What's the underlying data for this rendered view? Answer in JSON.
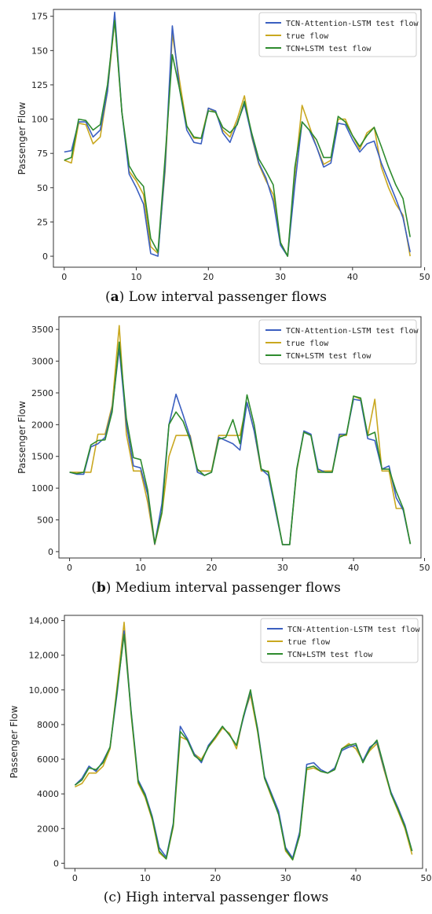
{
  "series_names": [
    "TCN-Attention-LSTM test flow",
    "true flow",
    "TCN+LSTM test flow"
  ],
  "series_colors": [
    "#3b5fc0",
    "#c9a820",
    "#2e8b2e"
  ],
  "chart_data": [
    {
      "type": "line",
      "caption_letter": "a",
      "caption_text": " Low interval passenger flows",
      "ylabel": "Passenger Flow",
      "xlabel": "",
      "xlim": [
        -1.5,
        49.5
      ],
      "ylim": [
        -8,
        180
      ],
      "xticks": [
        0,
        10,
        20,
        30,
        40,
        50
      ],
      "yticks": [
        0,
        25,
        50,
        75,
        100,
        125,
        150,
        175
      ],
      "ytick_labels": [
        "0",
        "25",
        "50",
        "75",
        "100",
        "125",
        "150",
        "175"
      ],
      "grid": false,
      "legend": "top-right",
      "x": [
        0,
        1,
        2,
        3,
        4,
        5,
        6,
        7,
        8,
        9,
        10,
        11,
        12,
        13,
        14,
        15,
        16,
        17,
        18,
        19,
        20,
        21,
        22,
        23,
        24,
        25,
        26,
        27,
        28,
        29,
        30,
        31,
        32,
        33,
        34,
        35,
        36,
        37,
        38,
        39,
        40,
        41,
        42,
        43,
        44,
        45,
        46,
        47,
        48
      ],
      "series": [
        {
          "name": "TCN-Attention-LSTM test flow",
          "values": [
            76,
            77,
            98,
            98,
            87,
            92,
            120,
            178,
            105,
            60,
            50,
            38,
            2,
            0,
            65,
            168,
            122,
            92,
            83,
            82,
            108,
            106,
            90,
            83,
            97,
            111,
            88,
            68,
            57,
            40,
            8,
            0,
            52,
            98,
            92,
            80,
            65,
            68,
            97,
            96,
            85,
            76,
            82,
            84,
            68,
            55,
            42,
            28,
            3
          ]
        },
        {
          "name": "true flow",
          "values": [
            70,
            68,
            97,
            96,
            82,
            87,
            120,
            172,
            105,
            62,
            55,
            45,
            7,
            2,
            62,
            162,
            128,
            95,
            86,
            86,
            108,
            105,
            92,
            87,
            100,
            117,
            87,
            67,
            55,
            45,
            10,
            0,
            60,
            110,
            95,
            80,
            67,
            70,
            100,
            100,
            88,
            78,
            90,
            94,
            65,
            50,
            38,
            30,
            0
          ]
        },
        {
          "name": "TCN+LSTM test flow",
          "values": [
            70,
            72,
            100,
            99,
            92,
            96,
            125,
            172,
            105,
            66,
            57,
            51,
            13,
            3,
            72,
            147,
            122,
            95,
            87,
            86,
            106,
            105,
            94,
            90,
            96,
            113,
            90,
            71,
            62,
            52,
            10,
            0,
            65,
            98,
            92,
            85,
            72,
            72,
            102,
            98,
            88,
            80,
            88,
            94,
            80,
            65,
            52,
            42,
            14
          ]
        }
      ]
    },
    {
      "type": "line",
      "caption_letter": "b",
      "caption_text": " Medium interval passenger flows",
      "ylabel": "Passenger Flow",
      "xlabel": "",
      "xlim": [
        -1.5,
        49.5
      ],
      "ylim": [
        -100,
        3700
      ],
      "xticks": [
        0,
        10,
        20,
        30,
        40,
        50
      ],
      "yticks": [
        0,
        500,
        1000,
        1500,
        2000,
        2500,
        3000,
        3500
      ],
      "ytick_labels": [
        "0",
        "500",
        "1000",
        "1500",
        "2000",
        "2500",
        "3000",
        "3500"
      ],
      "grid": false,
      "legend": "top-right",
      "x": [
        0,
        1,
        2,
        3,
        4,
        5,
        6,
        7,
        8,
        9,
        10,
        11,
        12,
        13,
        14,
        15,
        16,
        17,
        18,
        19,
        20,
        21,
        22,
        23,
        24,
        25,
        26,
        27,
        28,
        29,
        30,
        31,
        32,
        33,
        34,
        35,
        36,
        37,
        38,
        39,
        40,
        41,
        42,
        43,
        44,
        45,
        46,
        47,
        48
      ],
      "series": [
        {
          "name": "TCN-Attention-LSTM test flow",
          "values": [
            1250,
            1220,
            1220,
            1650,
            1700,
            1800,
            2250,
            3200,
            2000,
            1350,
            1320,
            900,
            120,
            750,
            2000,
            2480,
            2150,
            1800,
            1250,
            1200,
            1250,
            1800,
            1750,
            1700,
            1600,
            2350,
            1900,
            1300,
            1200,
            650,
            110,
            110,
            1300,
            1900,
            1850,
            1300,
            1250,
            1250,
            1850,
            1850,
            2400,
            2380,
            1780,
            1750,
            1300,
            1350,
            850,
            650,
            120
          ]
        },
        {
          "name": "true flow",
          "values": [
            1250,
            1250,
            1250,
            1250,
            1850,
            1850,
            2300,
            3560,
            1850,
            1270,
            1270,
            780,
            110,
            600,
            1500,
            1830,
            1830,
            1830,
            1270,
            1270,
            1270,
            1830,
            1830,
            1830,
            1830,
            2350,
            1900,
            1270,
            1270,
            650,
            110,
            110,
            1270,
            1900,
            1830,
            1270,
            1270,
            1270,
            1830,
            1830,
            2450,
            2400,
            1830,
            2400,
            1270,
            1270,
            680,
            680,
            120
          ]
        },
        {
          "name": "TCN+LSTM test flow",
          "values": [
            1250,
            1230,
            1250,
            1680,
            1750,
            1760,
            2200,
            3300,
            2100,
            1480,
            1450,
            970,
            130,
            620,
            2000,
            2200,
            2050,
            1750,
            1300,
            1200,
            1250,
            1770,
            1800,
            2080,
            1700,
            2470,
            2000,
            1300,
            1250,
            700,
            110,
            110,
            1300,
            1880,
            1830,
            1250,
            1250,
            1250,
            1800,
            1850,
            2450,
            2420,
            1830,
            1880,
            1300,
            1300,
            950,
            680,
            120
          ]
        }
      ]
    },
    {
      "type": "line",
      "caption_letter": "c",
      "caption_text": " High interval passenger flows",
      "ylabel": "Passenger Flow",
      "xlabel": "",
      "xlim": [
        -1.5,
        49.5
      ],
      "ylim": [
        -300,
        14300
      ],
      "xticks": [
        0,
        10,
        20,
        30,
        40,
        50
      ],
      "yticks": [
        0,
        2000,
        4000,
        6000,
        8000,
        10000,
        12000,
        14000
      ],
      "ytick_labels": [
        "0",
        "2000",
        "4000",
        "6000",
        "8000",
        "10,000",
        "12,000",
        "14,000"
      ],
      "grid": false,
      "legend": "top-right",
      "x": [
        0,
        1,
        2,
        3,
        4,
        5,
        6,
        7,
        8,
        9,
        10,
        11,
        12,
        13,
        14,
        15,
        16,
        17,
        18,
        19,
        20,
        21,
        22,
        23,
        24,
        25,
        26,
        27,
        28,
        29,
        30,
        31,
        32,
        33,
        34,
        35,
        36,
        37,
        38,
        39,
        40,
        41,
        42,
        43,
        44,
        45,
        46,
        47,
        48
      ],
      "series": [
        {
          "name": "TCN-Attention-LSTM test flow",
          "values": [
            4500,
            4900,
            5600,
            5300,
            5900,
            6700,
            9800,
            13400,
            8800,
            4800,
            4000,
            2700,
            900,
            350,
            2300,
            7900,
            7200,
            6300,
            5800,
            6800,
            7300,
            7900,
            7400,
            6800,
            8400,
            9900,
            7800,
            5000,
            4000,
            3000,
            900,
            300,
            1800,
            5700,
            5800,
            5400,
            5200,
            5500,
            6500,
            6700,
            6800,
            5900,
            6700,
            7000,
            5500,
            4100,
            3200,
            2200,
            700
          ]
        },
        {
          "name": "true flow",
          "values": [
            4400,
            4600,
            5200,
            5200,
            5600,
            6600,
            10200,
            13900,
            8600,
            4600,
            3800,
            2500,
            600,
            250,
            2100,
            7300,
            7100,
            6300,
            6000,
            6700,
            7200,
            7800,
            7500,
            6600,
            8500,
            9700,
            7600,
            4900,
            3800,
            2900,
            700,
            200,
            1600,
            5400,
            5500,
            5300,
            5200,
            5400,
            6600,
            6900,
            6600,
            5900,
            6500,
            6900,
            5400,
            4000,
            3000,
            2000,
            500
          ]
        },
        {
          "name": "TCN+LSTM test flow",
          "values": [
            4500,
            4800,
            5500,
            5400,
            5800,
            6700,
            10000,
            13200,
            8700,
            4700,
            3900,
            2600,
            700,
            250,
            2200,
            7600,
            7100,
            6200,
            5900,
            6700,
            7300,
            7900,
            7400,
            6800,
            8500,
            10000,
            7700,
            4900,
            3900,
            2800,
            800,
            200,
            1600,
            5500,
            5600,
            5300,
            5200,
            5400,
            6600,
            6800,
            6900,
            5800,
            6600,
            7100,
            5600,
            4000,
            3100,
            2100,
            700
          ]
        }
      ]
    }
  ]
}
